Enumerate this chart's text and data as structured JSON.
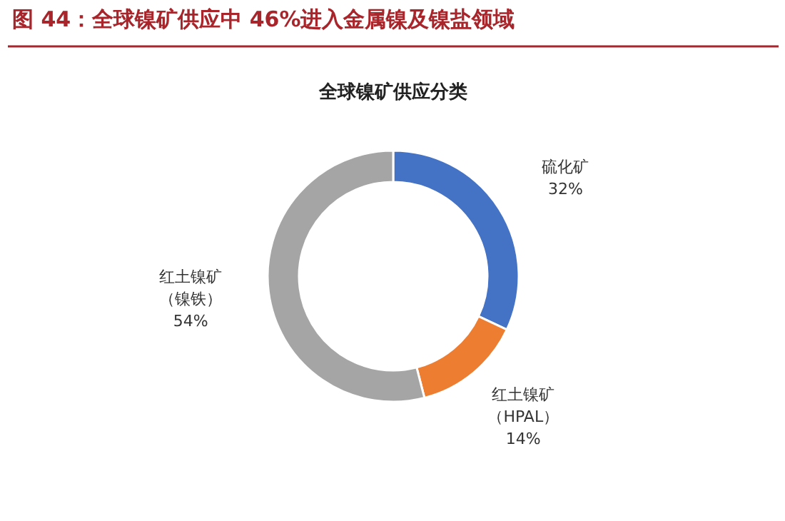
{
  "chart_data": {
    "type": "donut",
    "title": "图 44：全球镍矿供应中 46%进入金属镍及镍盐领域",
    "subtitle": "全球镍矿供应分类",
    "categories": [
      "硫化矿",
      "红土镍矿（HPAL）",
      "红土镍矿（镍铁）"
    ],
    "values": [
      32,
      14,
      54
    ],
    "colors": [
      "#4472c4",
      "#ed7d31",
      "#a5a5a5"
    ],
    "value_labels": [
      "32%",
      "14%",
      "54%"
    ]
  }
}
